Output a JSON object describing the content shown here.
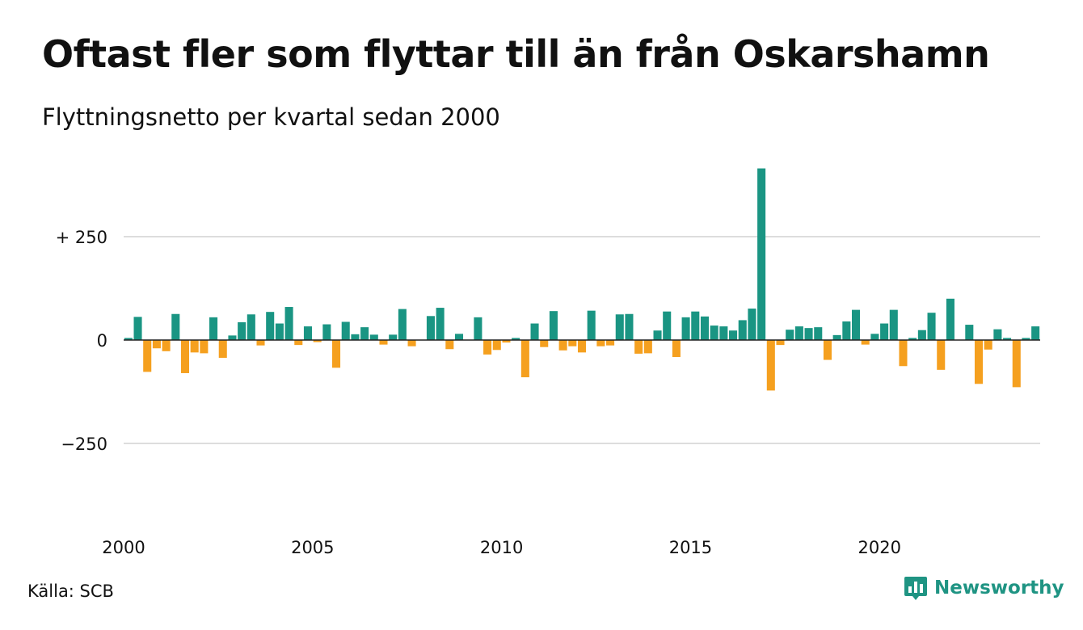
{
  "header": {
    "title": "Oftast fler som flyttar till än från Oskarshamn",
    "subtitle": "Flyttningsnetto per kvartal sedan 2000"
  },
  "footer": {
    "source": "Källa: SCB",
    "brand": "Newsworthy",
    "brand_icon": "bar-chart-logo-icon"
  },
  "colors": {
    "positive": "#1a9583",
    "negative": "#f5a01f",
    "grid": "#dddddd",
    "brand": "#1f9483"
  },
  "chart_data": {
    "type": "bar",
    "x_start_year": 2000,
    "x_end": 2024.25,
    "ylim": [
      -450,
      425
    ],
    "yticks": [
      {
        "value": 250,
        "label": "+ 250"
      },
      {
        "value": 0,
        "label": "0"
      },
      {
        "value": -250,
        "label": "−250"
      }
    ],
    "xticks": [
      {
        "value": 2000,
        "label": "2000"
      },
      {
        "value": 2005,
        "label": "2005"
      },
      {
        "value": 2010,
        "label": "2010"
      },
      {
        "value": 2015,
        "label": "2015"
      },
      {
        "value": 2020,
        "label": "2020"
      }
    ],
    "grid": true,
    "values": [
      5,
      56,
      -77,
      -20,
      -27,
      63,
      -80,
      -30,
      -32,
      55,
      -43,
      11,
      43,
      62,
      -13,
      68,
      40,
      80,
      -12,
      33,
      -5,
      38,
      -67,
      44,
      14,
      31,
      13,
      -11,
      13,
      75,
      -15,
      0,
      58,
      78,
      -22,
      15,
      0,
      55,
      -35,
      -24,
      -6,
      5,
      -90,
      40,
      -17,
      70,
      -25,
      -15,
      -30,
      71,
      -15,
      -13,
      62,
      63,
      -33,
      -32,
      23,
      69,
      -41,
      55,
      69,
      57,
      35,
      33,
      23,
      48,
      76,
      415,
      -122,
      -12,
      25,
      33,
      29,
      31,
      -48,
      12,
      45,
      73,
      -11,
      15,
      40,
      73,
      -63,
      5,
      24,
      66,
      -72,
      100,
      0,
      37,
      -106,
      -23,
      26,
      5,
      -114,
      5,
      33
    ]
  }
}
